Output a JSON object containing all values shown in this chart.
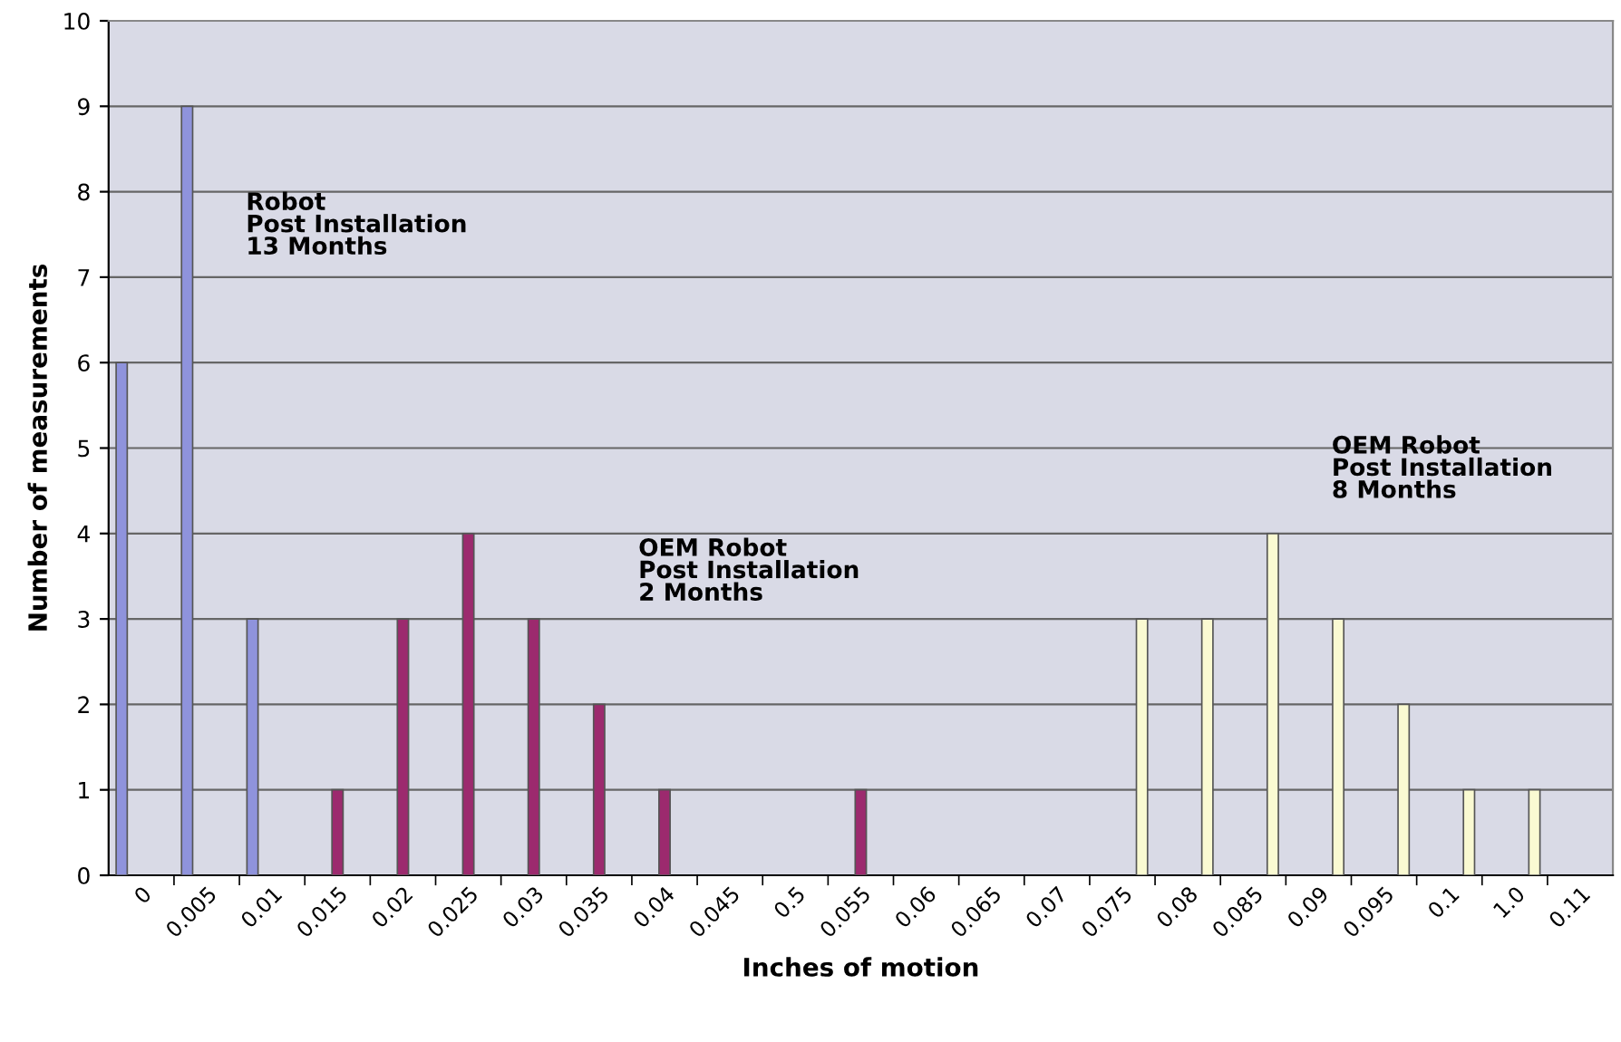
{
  "chart_data": {
    "type": "bar",
    "xlabel": "Inches of motion",
    "ylabel": "Number of measurements",
    "categories": [
      "0",
      "0.005",
      "0.01",
      "0.015",
      "0.02",
      "0.025",
      "0.03",
      "0.035",
      "0.04",
      "0.045",
      "0.5",
      "0.055",
      "0.06",
      "0.065",
      "0.07",
      "0.075",
      "0.08",
      "0.085",
      "0.09",
      "0.095",
      "0.1",
      "1.0",
      "0.11"
    ],
    "series": [
      {
        "color": "#8f93dc",
        "values": [
          6,
          9,
          3,
          null,
          null,
          null,
          null,
          null,
          null,
          null,
          null,
          null,
          null,
          null,
          null,
          null,
          null,
          null,
          null,
          null,
          null,
          null,
          null
        ]
      },
      {
        "color": "#9c2a6e",
        "values": [
          null,
          null,
          null,
          1,
          3,
          4,
          3,
          2,
          1,
          null,
          null,
          1,
          null,
          null,
          null,
          null,
          null,
          null,
          null,
          null,
          null,
          null,
          null
        ]
      },
      {
        "color": "#fafad2",
        "values": [
          null,
          null,
          null,
          null,
          null,
          null,
          null,
          null,
          null,
          null,
          null,
          null,
          null,
          null,
          null,
          3,
          3,
          4,
          3,
          2,
          1,
          1,
          null
        ]
      }
    ],
    "ylim": [
      0,
      10
    ],
    "yticks": [
      0,
      1,
      2,
      3,
      4,
      5,
      6,
      7,
      8,
      9,
      10
    ],
    "grid": "y",
    "annotations": [
      "Robot\nPost Installation\n13 Months",
      "OEM Robot\nPost Installation\n2 Months",
      "OEM Robot\nPost Installation\n8 Months"
    ]
  }
}
